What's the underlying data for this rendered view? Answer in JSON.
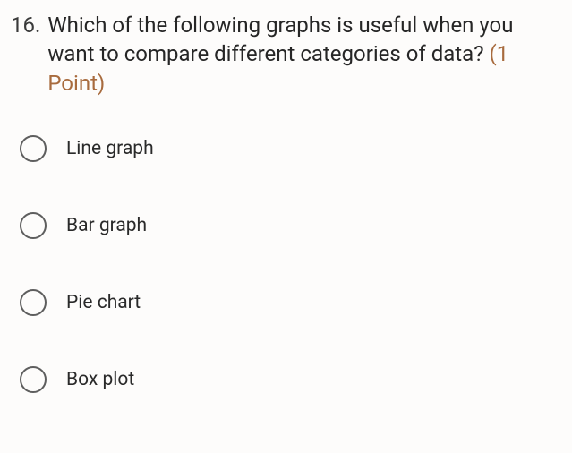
{
  "question": {
    "number": "16.",
    "text": "Which of the following graphs is useful when you want to compare different categories of data?",
    "points_label": "(1 Point)"
  },
  "options": [
    {
      "label": "Line graph"
    },
    {
      "label": "Bar graph"
    },
    {
      "label": "Pie chart"
    },
    {
      "label": "Box plot"
    }
  ],
  "styling": {
    "background_color": "#fdfcfb",
    "question_color": "#262626",
    "number_color": "#3a3a3a",
    "points_color": "#a86b3e",
    "radio_border_color": "#5e5e5e",
    "option_text_color": "#2a2a2a",
    "question_fontsize": 24,
    "option_fontsize": 21,
    "radio_size": 30
  }
}
